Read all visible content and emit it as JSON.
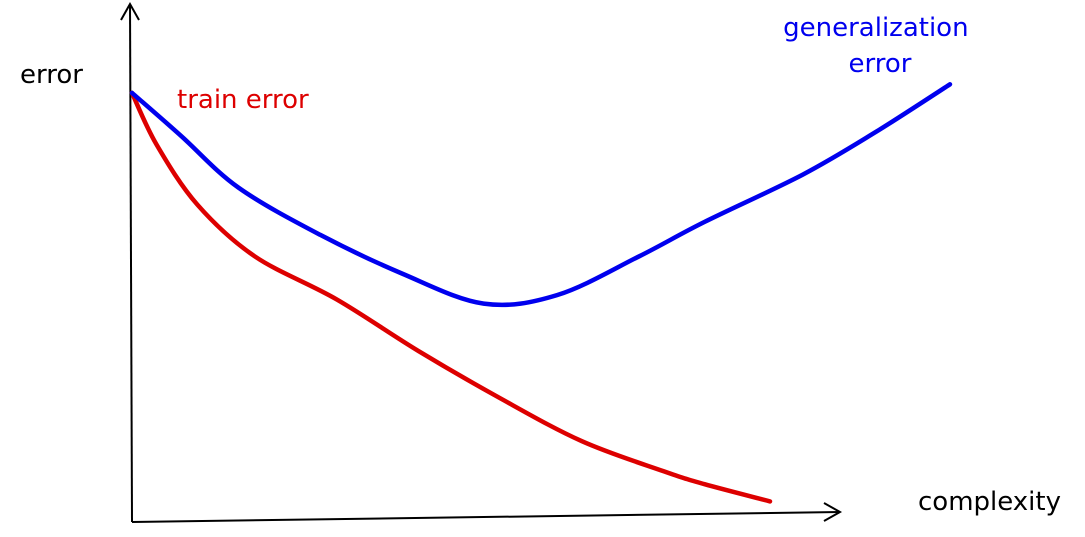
{
  "chart_data": {
    "type": "line",
    "title": "",
    "xlabel": "complexity",
    "ylabel": "error",
    "xlim": [
      0,
      10
    ],
    "ylim": [
      0,
      10
    ],
    "grid": false,
    "legend": "none",
    "series": [
      {
        "name": "train error",
        "color": "#dd0000",
        "x": [
          0,
          0.3,
          0.8,
          1.5,
          2.5,
          3.5,
          4.5,
          5.5,
          6.5,
          7.0,
          7.8
        ],
        "y": [
          9.7,
          8.5,
          7.1,
          5.9,
          4.9,
          3.7,
          2.6,
          1.6,
          0.9,
          0.6,
          0.2
        ]
      },
      {
        "name": "generalization error",
        "color": "#0000ee",
        "x": [
          0,
          0.6,
          1.3,
          2.3,
          3.3,
          4.3,
          5.2,
          6.2,
          7.0,
          8.2,
          9.1,
          10.0
        ],
        "y": [
          9.7,
          8.7,
          7.5,
          6.4,
          5.5,
          4.8,
          5.0,
          5.9,
          6.7,
          7.8,
          8.8,
          9.9
        ]
      }
    ]
  }
}
